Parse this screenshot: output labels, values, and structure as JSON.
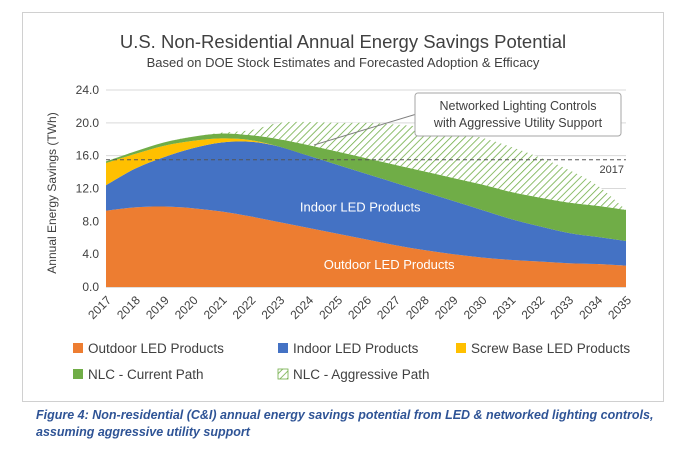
{
  "caption": "Figure 4: Non-residential (C&I) annual energy savings potential from LED & networked lighting controls, assuming aggressive utility support",
  "chart_data": {
    "type": "area",
    "title": "U.S. Non-Residential Annual Energy Savings Potential",
    "subtitle": "Based on DOE Stock Estimates and Forecasted Adoption & Efficacy",
    "ylabel": "Annual Energy Savings (TWh)",
    "xlabel": "",
    "ylim": [
      0,
      24
    ],
    "yticks": [
      "0.0",
      "4.0",
      "8.0",
      "12.0",
      "16.0",
      "20.0",
      "24.0"
    ],
    "x": [
      "2017",
      "2018",
      "2019",
      "2020",
      "2021",
      "2022",
      "2023",
      "2024",
      "2025",
      "2026",
      "2027",
      "2028",
      "2029",
      "2030",
      "2031",
      "2032",
      "2033",
      "2034",
      "2035"
    ],
    "series": [
      {
        "name": "Outdoor LED Products",
        "color": "#ed7d31",
        "values": [
          9.3,
          9.7,
          9.8,
          9.6,
          9.2,
          8.6,
          7.9,
          7.2,
          6.5,
          5.8,
          5.1,
          4.5,
          4.0,
          3.6,
          3.3,
          3.1,
          2.9,
          2.8,
          2.6
        ]
      },
      {
        "name": "Indoor LED Products",
        "color": "#4472c4",
        "values": [
          3.1,
          4.7,
          6.0,
          7.3,
          8.4,
          9.1,
          9.2,
          8.8,
          8.4,
          8.0,
          7.6,
          7.1,
          6.5,
          5.8,
          5.0,
          4.3,
          3.7,
          3.3,
          3.0
        ]
      },
      {
        "name": "Screw Base LED Products",
        "color": "#ffc000",
        "values": [
          2.7,
          1.8,
          1.4,
          0.9,
          0.5,
          0.2,
          0,
          0,
          0,
          0,
          0,
          0,
          0,
          0,
          0,
          0,
          0,
          0,
          0
        ]
      },
      {
        "name": "NLC - Current Path",
        "color": "#70ad47",
        "values": [
          0.2,
          0.3,
          0.4,
          0.5,
          0.6,
          0.6,
          0.9,
          1.3,
          1.6,
          1.9,
          2.2,
          2.5,
          2.8,
          3.1,
          3.3,
          3.5,
          3.7,
          3.8,
          3.8
        ]
      },
      {
        "name": "NLC - Aggressive Path",
        "color": "#70ad47",
        "pattern": "hatched",
        "values": [
          0,
          0,
          0,
          0,
          0.1,
          0.6,
          2.0,
          2.8,
          3.5,
          4.3,
          4.9,
          5.4,
          5.7,
          5.7,
          5.5,
          4.9,
          4.0,
          2.5,
          0
        ]
      }
    ],
    "reference_line": {
      "value": 15.5,
      "label": "2017"
    },
    "annotation": {
      "text_line1": "Networked Lighting Controls",
      "text_line2": "with Aggressive Utility Support"
    },
    "area_labels": {
      "indoor": "Indoor LED Products",
      "outdoor": "Outdoor LED Products"
    },
    "legend_placement": "bottom",
    "grid": true
  }
}
